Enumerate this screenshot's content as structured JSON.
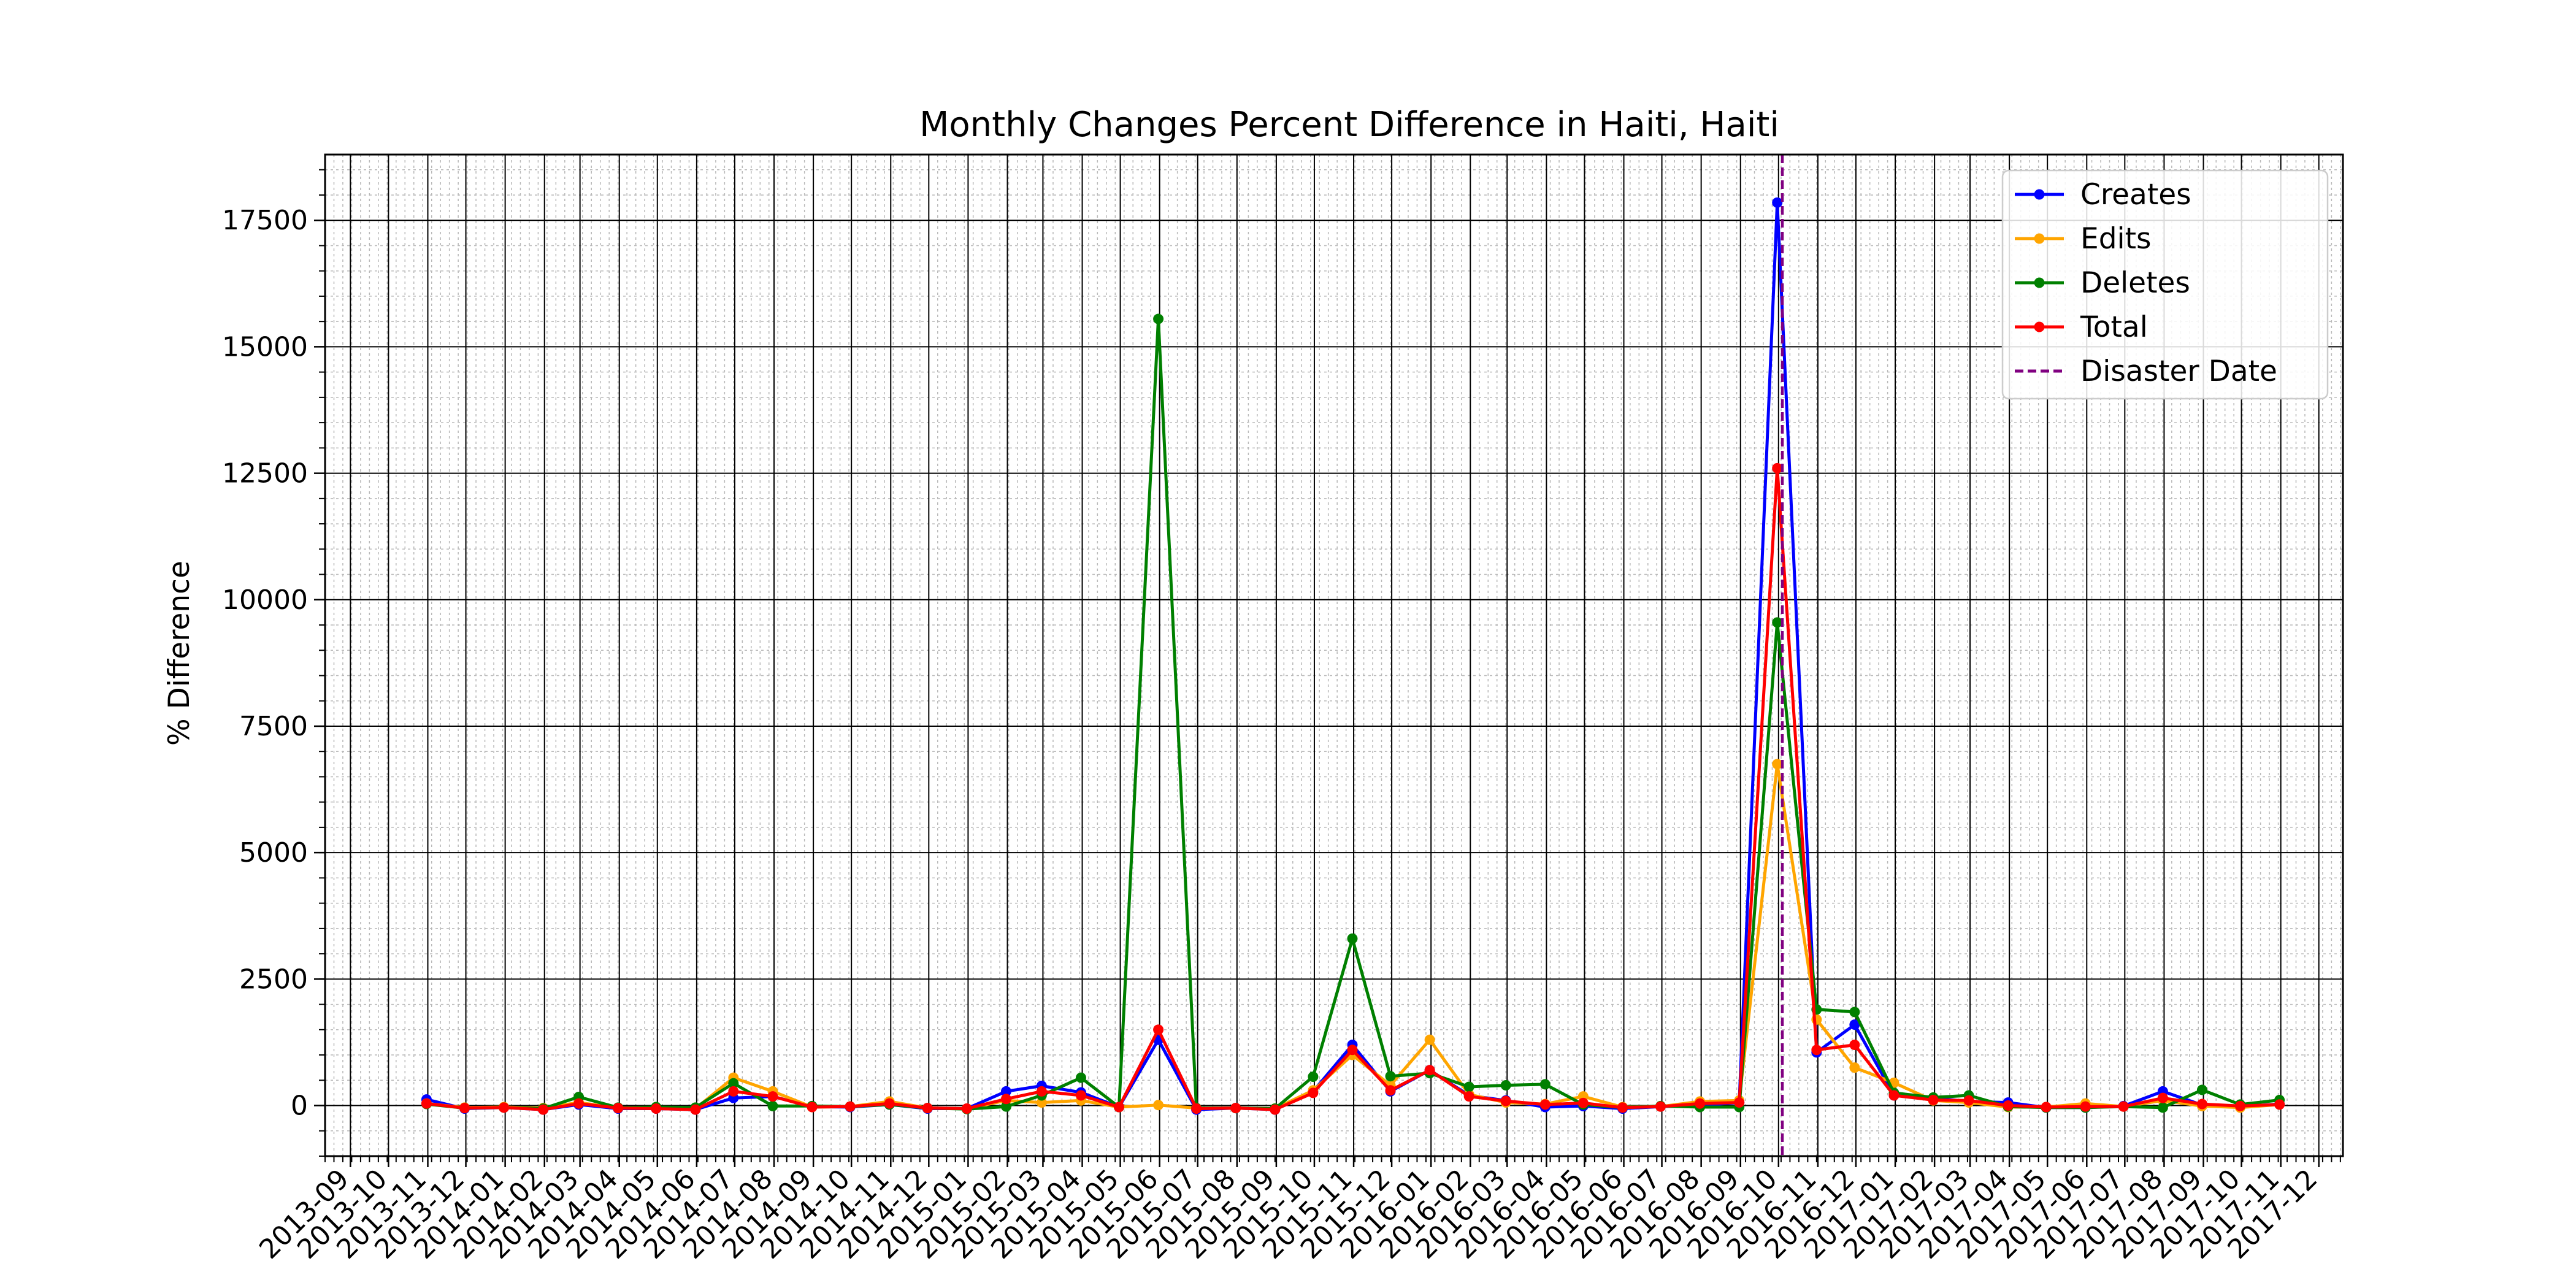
{
  "chart_data": {
    "type": "line",
    "title": "Monthly Changes Percent Difference in Haiti, Haiti",
    "xlabel": "",
    "ylabel": "% Difference",
    "ylim": [
      -1000,
      18800
    ],
    "yticks": [
      0,
      2500,
      5000,
      7500,
      10000,
      12500,
      15000,
      17500
    ],
    "xlim": [
      "2013-08-12",
      "2017-12-20"
    ],
    "xtick_labels": [
      "2013-09",
      "2013-10",
      "2013-11",
      "2013-12",
      "2014-01",
      "2014-02",
      "2014-03",
      "2014-04",
      "2014-05",
      "2014-06",
      "2014-07",
      "2014-08",
      "2014-09",
      "2014-10",
      "2014-11",
      "2014-12",
      "2015-01",
      "2015-02",
      "2015-03",
      "2015-04",
      "2015-05",
      "2015-06",
      "2015-07",
      "2015-08",
      "2015-09",
      "2015-10",
      "2015-11",
      "2015-12",
      "2016-01",
      "2016-02",
      "2016-03",
      "2016-04",
      "2016-05",
      "2016-06",
      "2016-07",
      "2016-08",
      "2016-09",
      "2016-10",
      "2016-11",
      "2016-12",
      "2017-01",
      "2017-02",
      "2017-03",
      "2017-04",
      "2017-05",
      "2017-06",
      "2017-07",
      "2017-08",
      "2017-09",
      "2017-10",
      "2017-11",
      "2017-12"
    ],
    "x": [
      "2013-10-31",
      "2013-11-30",
      "2013-12-31",
      "2014-01-31",
      "2014-02-28",
      "2014-03-31",
      "2014-04-30",
      "2014-05-31",
      "2014-06-30",
      "2014-07-31",
      "2014-08-31",
      "2014-09-30",
      "2014-10-31",
      "2014-11-30",
      "2014-12-31",
      "2015-01-31",
      "2015-02-28",
      "2015-03-31",
      "2015-04-30",
      "2015-05-31",
      "2015-06-30",
      "2015-07-31",
      "2015-08-31",
      "2015-09-30",
      "2015-10-31",
      "2015-11-30",
      "2015-12-31",
      "2016-01-31",
      "2016-02-29",
      "2016-03-31",
      "2016-04-30",
      "2016-05-31",
      "2016-06-30",
      "2016-07-31",
      "2016-08-31",
      "2016-09-30",
      "2016-10-31",
      "2016-11-30",
      "2016-12-31",
      "2017-01-31",
      "2017-02-28",
      "2017-03-31",
      "2017-04-30",
      "2017-05-31",
      "2017-06-30",
      "2017-07-31",
      "2017-08-31",
      "2017-09-30",
      "2017-10-31"
    ],
    "series": [
      {
        "name": "Creates",
        "color": "#0000ff",
        "values": [
          120,
          -60,
          -40,
          -80,
          20,
          -60,
          -60,
          -80,
          150,
          180,
          -20,
          -30,
          20,
          -60,
          -60,
          280,
          390,
          260,
          -30,
          1300,
          -80,
          -50,
          -80,
          280,
          1200,
          280,
          700,
          200,
          100,
          -30,
          -10,
          -60,
          -20,
          0,
          60,
          17850,
          1050,
          1600,
          200,
          150,
          80,
          60,
          -40,
          -40,
          -10,
          280,
          10,
          -20,
          30
        ]
      },
      {
        "name": "Edits",
        "color": "#ffa500",
        "values": [
          40,
          -40,
          -30,
          -50,
          60,
          -50,
          -40,
          -60,
          550,
          280,
          -30,
          -20,
          80,
          -50,
          -60,
          100,
          60,
          100,
          -30,
          10,
          -50,
          -50,
          -60,
          300,
          1000,
          400,
          1300,
          220,
          60,
          30,
          180,
          -30,
          -20,
          80,
          100,
          6750,
          1700,
          750,
          450,
          100,
          60,
          -30,
          -30,
          40,
          -20,
          100,
          -10,
          -40,
          20
        ]
      },
      {
        "name": "Deletes",
        "color": "#008000",
        "values": [
          30,
          -50,
          -40,
          -60,
          170,
          -40,
          -30,
          -40,
          440,
          -10,
          -10,
          -20,
          20,
          -50,
          -70,
          -20,
          200,
          550,
          -30,
          15550,
          -50,
          -50,
          -60,
          570,
          3300,
          580,
          640,
          370,
          400,
          420,
          20,
          -40,
          -10,
          -30,
          -30,
          9550,
          1900,
          1850,
          250,
          160,
          200,
          -20,
          -40,
          -40,
          -20,
          -40,
          310,
          20,
          110
        ]
      },
      {
        "name": "Total",
        "color": "#ff0000",
        "values": [
          40,
          -50,
          -40,
          -80,
          40,
          -50,
          -60,
          -80,
          280,
          180,
          -30,
          -20,
          40,
          -50,
          -60,
          130,
          280,
          200,
          -30,
          1500,
          -60,
          -50,
          -80,
          250,
          1100,
          300,
          700,
          180,
          90,
          20,
          50,
          -40,
          -20,
          40,
          60,
          12600,
          1100,
          1200,
          200,
          110,
          100,
          0,
          -30,
          -20,
          -20,
          150,
          30,
          -10,
          20
        ]
      }
    ],
    "disaster_date": {
      "name": "Disaster Date",
      "x": "2016-10-04",
      "color": "#800080",
      "style": "dashed"
    },
    "legend_placement": "top-right",
    "grid": "major and minor on both axes"
  }
}
